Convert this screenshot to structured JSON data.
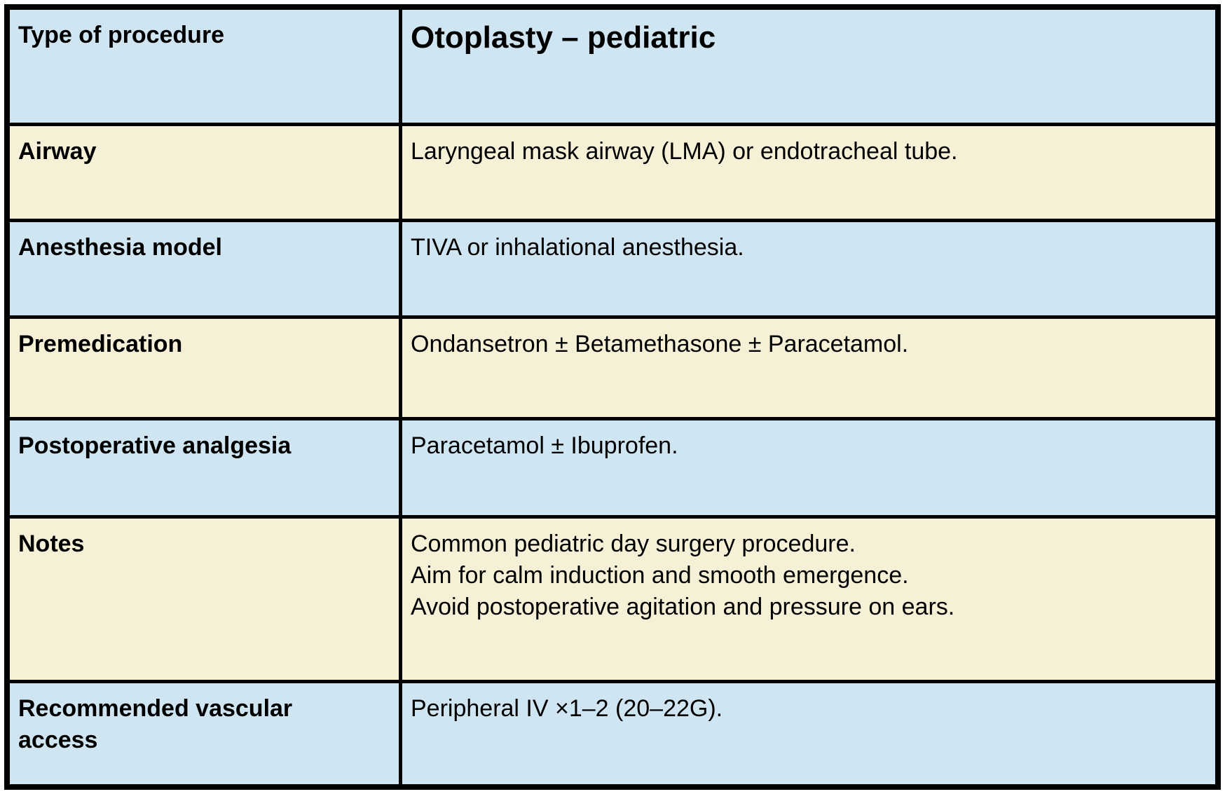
{
  "colors": {
    "row_blue": "#cfe5f2",
    "row_cream": "#f5f0d6",
    "border": "#000000",
    "text": "#000000"
  },
  "table": {
    "rows": [
      {
        "label": "Type of procedure",
        "value": "Otoplasty – pediatric",
        "bg": "blue"
      },
      {
        "label": "Airway",
        "value": "Laryngeal mask airway (LMA) or endotracheal tube.",
        "bg": "cream"
      },
      {
        "label": "Anesthesia model",
        "value": "TIVA or inhalational anesthesia.",
        "bg": "blue"
      },
      {
        "label": "Premedication",
        "value": "Ondansetron ± Betamethasone ± Paracetamol.",
        "bg": "cream"
      },
      {
        "label": "Postoperative analgesia",
        "value": "Paracetamol ± Ibuprofen.",
        "bg": "blue"
      },
      {
        "label": "Notes",
        "lines": [
          "Common pediatric day surgery procedure.",
          "Aim for calm induction and smooth emergence.",
          "Avoid postoperative agitation and pressure on ears."
        ],
        "bg": "cream"
      },
      {
        "label": "Recommended vascular access",
        "value": "Peripheral IV ×1–2 (20–22G).",
        "bg": "blue"
      }
    ]
  }
}
